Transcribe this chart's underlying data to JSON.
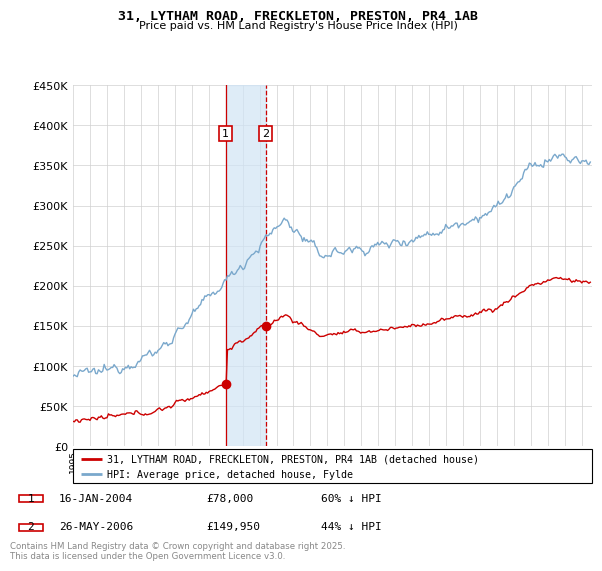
{
  "title_line1": "31, LYTHAM ROAD, FRECKLETON, PRESTON, PR4 1AB",
  "title_line2": "Price paid vs. HM Land Registry's House Price Index (HPI)",
  "legend_red": "31, LYTHAM ROAD, FRECKLETON, PRESTON, PR4 1AB (detached house)",
  "legend_blue": "HPI: Average price, detached house, Fylde",
  "transaction1_date": "16-JAN-2004",
  "transaction1_price": "£78,000",
  "transaction1_pct": "60% ↓ HPI",
  "transaction2_date": "26-MAY-2006",
  "transaction2_price": "£149,950",
  "transaction2_pct": "44% ↓ HPI",
  "footer": "Contains HM Land Registry data © Crown copyright and database right 2025.\nThis data is licensed under the Open Government Licence v3.0.",
  "red_color": "#cc0000",
  "blue_color": "#7aa8cc",
  "vline1_color": "#cc0000",
  "vline2_color": "#cc0000",
  "shade_color": "#d0e4f5",
  "ylim_max": 450000,
  "ylim_min": 0,
  "t1_year": 2004.04,
  "t2_year": 2006.4,
  "t1_price": 78000,
  "t2_price": 149950
}
